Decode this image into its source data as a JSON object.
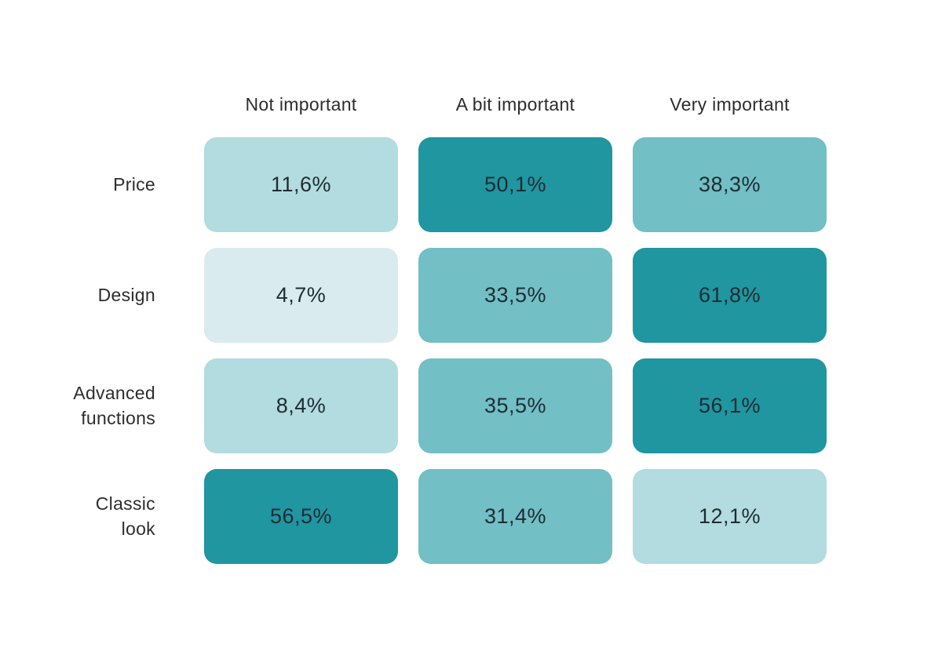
{
  "chart_data": {
    "type": "heatmap",
    "title": "",
    "columns": [
      "Not important",
      "A bit important",
      "Very important"
    ],
    "rows": [
      {
        "label": "Price",
        "values": [
          11.6,
          50.1,
          38.3
        ],
        "display": [
          "11,6%",
          "50,1%",
          "38,3%"
        ],
        "levels": [
          "light",
          "dark",
          "medium"
        ]
      },
      {
        "label": "Design",
        "values": [
          4.7,
          33.5,
          61.8
        ],
        "display": [
          "4,7%",
          "33,5%",
          "61,8%"
        ],
        "levels": [
          "xlight",
          "medium",
          "dark"
        ]
      },
      {
        "label": "Advanced\nfunctions",
        "values": [
          8.4,
          35.5,
          56.1
        ],
        "display": [
          "8,4%",
          "35,5%",
          "56,1%"
        ],
        "levels": [
          "light",
          "medium",
          "dark"
        ]
      },
      {
        "label": "Classic\nlook",
        "values": [
          56.5,
          31.4,
          12.1
        ],
        "display": [
          "56,5%",
          "31,4%",
          "12,1%"
        ],
        "levels": [
          "dark",
          "medium",
          "light"
        ]
      }
    ],
    "value_format": "percent with comma decimal separator",
    "palette": {
      "xlight": "#d9ebee",
      "light": "#b2dcdf",
      "medium": "#72bfc6",
      "dark": "#1f96a0"
    },
    "text_color": "#1e2c33",
    "background": "#ffffff",
    "legend": "none",
    "grid_lines": "off"
  }
}
